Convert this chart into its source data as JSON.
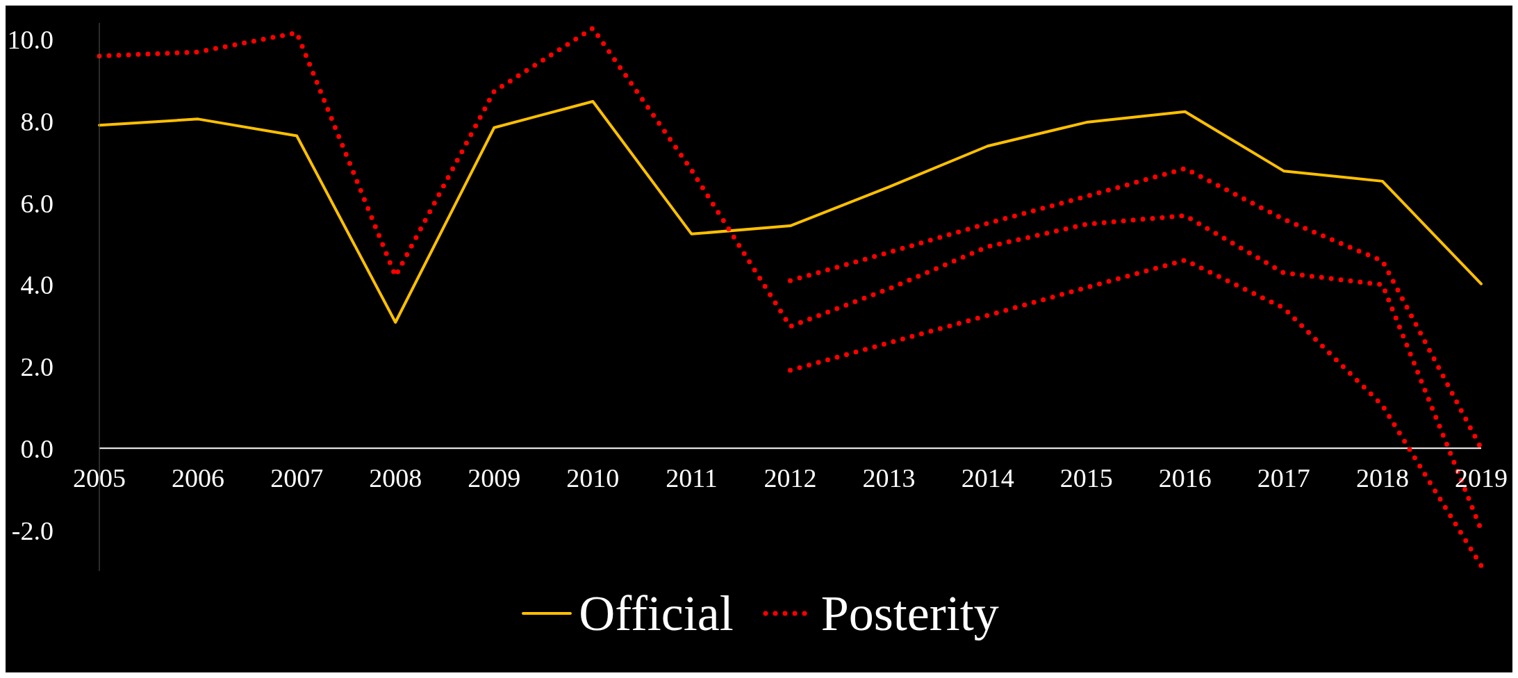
{
  "chart_data": {
    "type": "line",
    "categories": [
      "2005",
      "2006",
      "2007",
      "2008",
      "2009",
      "2010",
      "2011",
      "2012",
      "2013",
      "2014",
      "2015",
      "2016",
      "2017",
      "2018",
      "2019"
    ],
    "series": [
      {
        "name": "Official",
        "color": "#ffc000",
        "line_style": "solid",
        "values": [
          7.9,
          8.05,
          7.64,
          3.08,
          7.84,
          8.48,
          5.24,
          5.44,
          6.39,
          7.39,
          7.97,
          8.23,
          6.78,
          6.53,
          4.02
        ]
      },
      {
        "name": "Posterity",
        "color": "#ff0000",
        "line_style": "dotted",
        "values": [
          9.59,
          9.69,
          10.16,
          4.21,
          8.73,
          10.27,
          6.8,
          2.98,
          3.9,
          4.93,
          5.48,
          5.69,
          4.29,
          4.0,
          -1.99
        ]
      },
      {
        "color": "#ff0000",
        "line_style": "dotted",
        "values": [
          null,
          null,
          null,
          null,
          null,
          null,
          null,
          4.1,
          4.79,
          5.5,
          6.16,
          6.84,
          5.6,
          4.58,
          0.0
        ]
      },
      {
        "color": "#ff0000",
        "line_style": "dotted",
        "values": [
          null,
          null,
          null,
          null,
          null,
          null,
          null,
          1.91,
          2.58,
          3.25,
          3.93,
          4.6,
          3.43,
          1.05,
          -2.87
        ]
      }
    ],
    "ylim": [
      -3,
      10.4
    ],
    "yticks": [
      {
        "value": -2,
        "label": "-2.0"
      },
      {
        "value": 0,
        "label": "0.0"
      },
      {
        "value": 2,
        "label": "2.0"
      },
      {
        "value": 4,
        "label": "4.0"
      },
      {
        "value": 6,
        "label": "6.0"
      },
      {
        "value": 8,
        "label": "8.0"
      },
      {
        "value": 10,
        "label": "10.0"
      }
    ],
    "marker": "none",
    "grid": false,
    "legend": "bottom"
  }
}
